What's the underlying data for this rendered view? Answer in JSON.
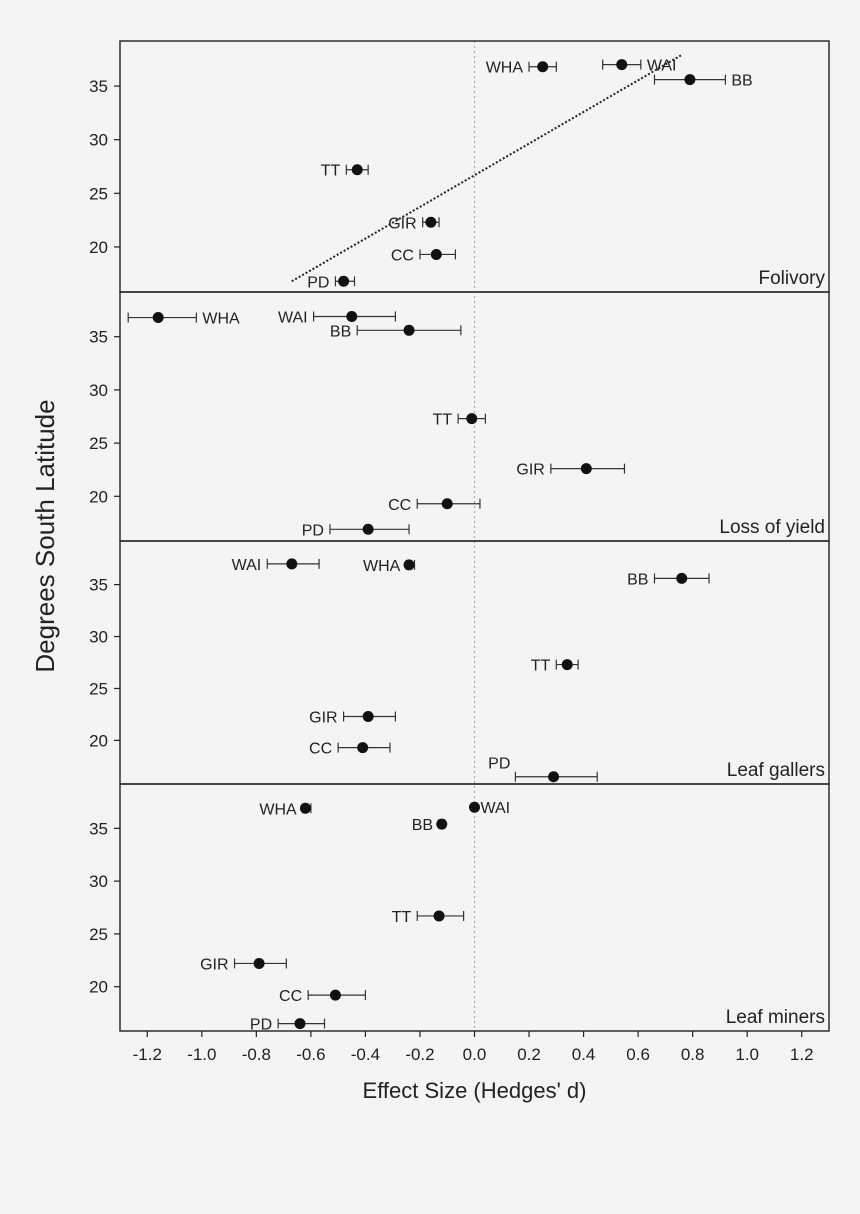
{
  "chart_data": {
    "type": "scatter",
    "xlabel": "Effect Size (Hedges' d)",
    "ylabel": "Degrees South Latitude",
    "xlim": [
      -1.3,
      1.3
    ],
    "ylim": [
      15.8,
      39.2
    ],
    "x_ticks": [
      -1.2,
      -1.0,
      -0.8,
      -0.6,
      -0.4,
      -0.2,
      0.0,
      0.2,
      0.4,
      0.6,
      0.8,
      1.0,
      1.2
    ],
    "x_tick_labels": [
      "-1.2",
      "-1.0",
      "-0.8",
      "-0.6",
      "-0.4",
      "-0.2",
      "0.0",
      "0.2",
      "0.4",
      "0.6",
      "0.8",
      "1.0",
      "1.2"
    ],
    "y_ticks": [
      20,
      25,
      30,
      35
    ],
    "y_tick_labels": [
      "20",
      "25",
      "30",
      "35"
    ],
    "reference_line_x": 0,
    "panels": [
      {
        "title": "Folivory",
        "points": [
          {
            "label": "WHA",
            "x": 0.25,
            "y": 36.8,
            "lo": 0.2,
            "hi": 0.3,
            "label_side": "left"
          },
          {
            "label": "WAI",
            "x": 0.54,
            "y": 37.0,
            "lo": 0.47,
            "hi": 0.61,
            "label_side": "right"
          },
          {
            "label": "BB",
            "x": 0.79,
            "y": 35.6,
            "lo": 0.66,
            "hi": 0.92,
            "label_side": "right"
          },
          {
            "label": "TT",
            "x": -0.43,
            "y": 27.2,
            "lo": -0.47,
            "hi": -0.39,
            "label_side": "left"
          },
          {
            "label": "GIR",
            "x": -0.16,
            "y": 22.3,
            "lo": -0.19,
            "hi": -0.13,
            "label_side": "left"
          },
          {
            "label": "CC",
            "x": -0.14,
            "y": 19.3,
            "lo": -0.2,
            "hi": -0.07,
            "label_side": "left"
          },
          {
            "label": "PD",
            "x": -0.48,
            "y": 16.8,
            "lo": -0.51,
            "hi": -0.44,
            "label_side": "left"
          }
        ],
        "trend": {
          "x1": -0.67,
          "y1": 16.8,
          "x2": 0.76,
          "y2": 37.9
        }
      },
      {
        "title": "Loss of yield",
        "points": [
          {
            "label": "WHA",
            "x": -1.16,
            "y": 36.8,
            "lo": -1.27,
            "hi": -1.02,
            "label_side": "right"
          },
          {
            "label": "WAI",
            "x": -0.45,
            "y": 36.9,
            "lo": -0.59,
            "hi": -0.29,
            "label_side": "left"
          },
          {
            "label": "BB",
            "x": -0.24,
            "y": 35.6,
            "lo": -0.43,
            "hi": -0.05,
            "label_side": "left"
          },
          {
            "label": "TT",
            "x": -0.01,
            "y": 27.3,
            "lo": -0.06,
            "hi": 0.04,
            "label_side": "left"
          },
          {
            "label": "GIR",
            "x": 0.41,
            "y": 22.6,
            "lo": 0.28,
            "hi": 0.55,
            "label_side": "left"
          },
          {
            "label": "CC",
            "x": -0.1,
            "y": 19.3,
            "lo": -0.21,
            "hi": 0.02,
            "label_side": "left"
          },
          {
            "label": "PD",
            "x": -0.39,
            "y": 16.9,
            "lo": -0.53,
            "hi": -0.24,
            "label_side": "left"
          }
        ]
      },
      {
        "title": "Leaf gallers",
        "points": [
          {
            "label": "WAI",
            "x": -0.67,
            "y": 37.0,
            "lo": -0.76,
            "hi": -0.57,
            "label_side": "left"
          },
          {
            "label": "WHA",
            "x": -0.24,
            "y": 36.9,
            "lo": -0.25,
            "hi": -0.22,
            "label_side": "left"
          },
          {
            "label": "BB",
            "x": 0.76,
            "y": 35.6,
            "lo": 0.66,
            "hi": 0.86,
            "label_side": "left"
          },
          {
            "label": "TT",
            "x": 0.34,
            "y": 27.3,
            "lo": 0.3,
            "hi": 0.38,
            "label_side": "left"
          },
          {
            "label": "GIR",
            "x": -0.39,
            "y": 22.3,
            "lo": -0.48,
            "hi": -0.29,
            "label_side": "left"
          },
          {
            "label": "CC",
            "x": -0.41,
            "y": 19.3,
            "lo": -0.5,
            "hi": -0.31,
            "label_side": "left"
          },
          {
            "label": "PD",
            "x": 0.29,
            "y": 16.5,
            "lo": 0.15,
            "hi": 0.45,
            "label_side": "upper-left"
          }
        ]
      },
      {
        "title": "Leaf miners",
        "points": [
          {
            "label": "WHA",
            "x": -0.62,
            "y": 36.9,
            "lo": -0.63,
            "hi": -0.6,
            "label_side": "left"
          },
          {
            "label": "WAI",
            "x": 0.0,
            "y": 37.0,
            "lo": 0.0,
            "hi": 0.0,
            "label_side": "right"
          },
          {
            "label": "BB",
            "x": -0.12,
            "y": 35.4,
            "lo": -0.13,
            "hi": -0.11,
            "label_side": "left"
          },
          {
            "label": "TT",
            "x": -0.13,
            "y": 26.7,
            "lo": -0.21,
            "hi": -0.04,
            "label_side": "left"
          },
          {
            "label": "GIR",
            "x": -0.79,
            "y": 22.2,
            "lo": -0.88,
            "hi": -0.69,
            "label_side": "left"
          },
          {
            "label": "CC",
            "x": -0.51,
            "y": 19.2,
            "lo": -0.61,
            "hi": -0.4,
            "label_side": "left"
          },
          {
            "label": "PD",
            "x": -0.64,
            "y": 16.5,
            "lo": -0.72,
            "hi": -0.55,
            "label_side": "left"
          }
        ]
      }
    ]
  }
}
